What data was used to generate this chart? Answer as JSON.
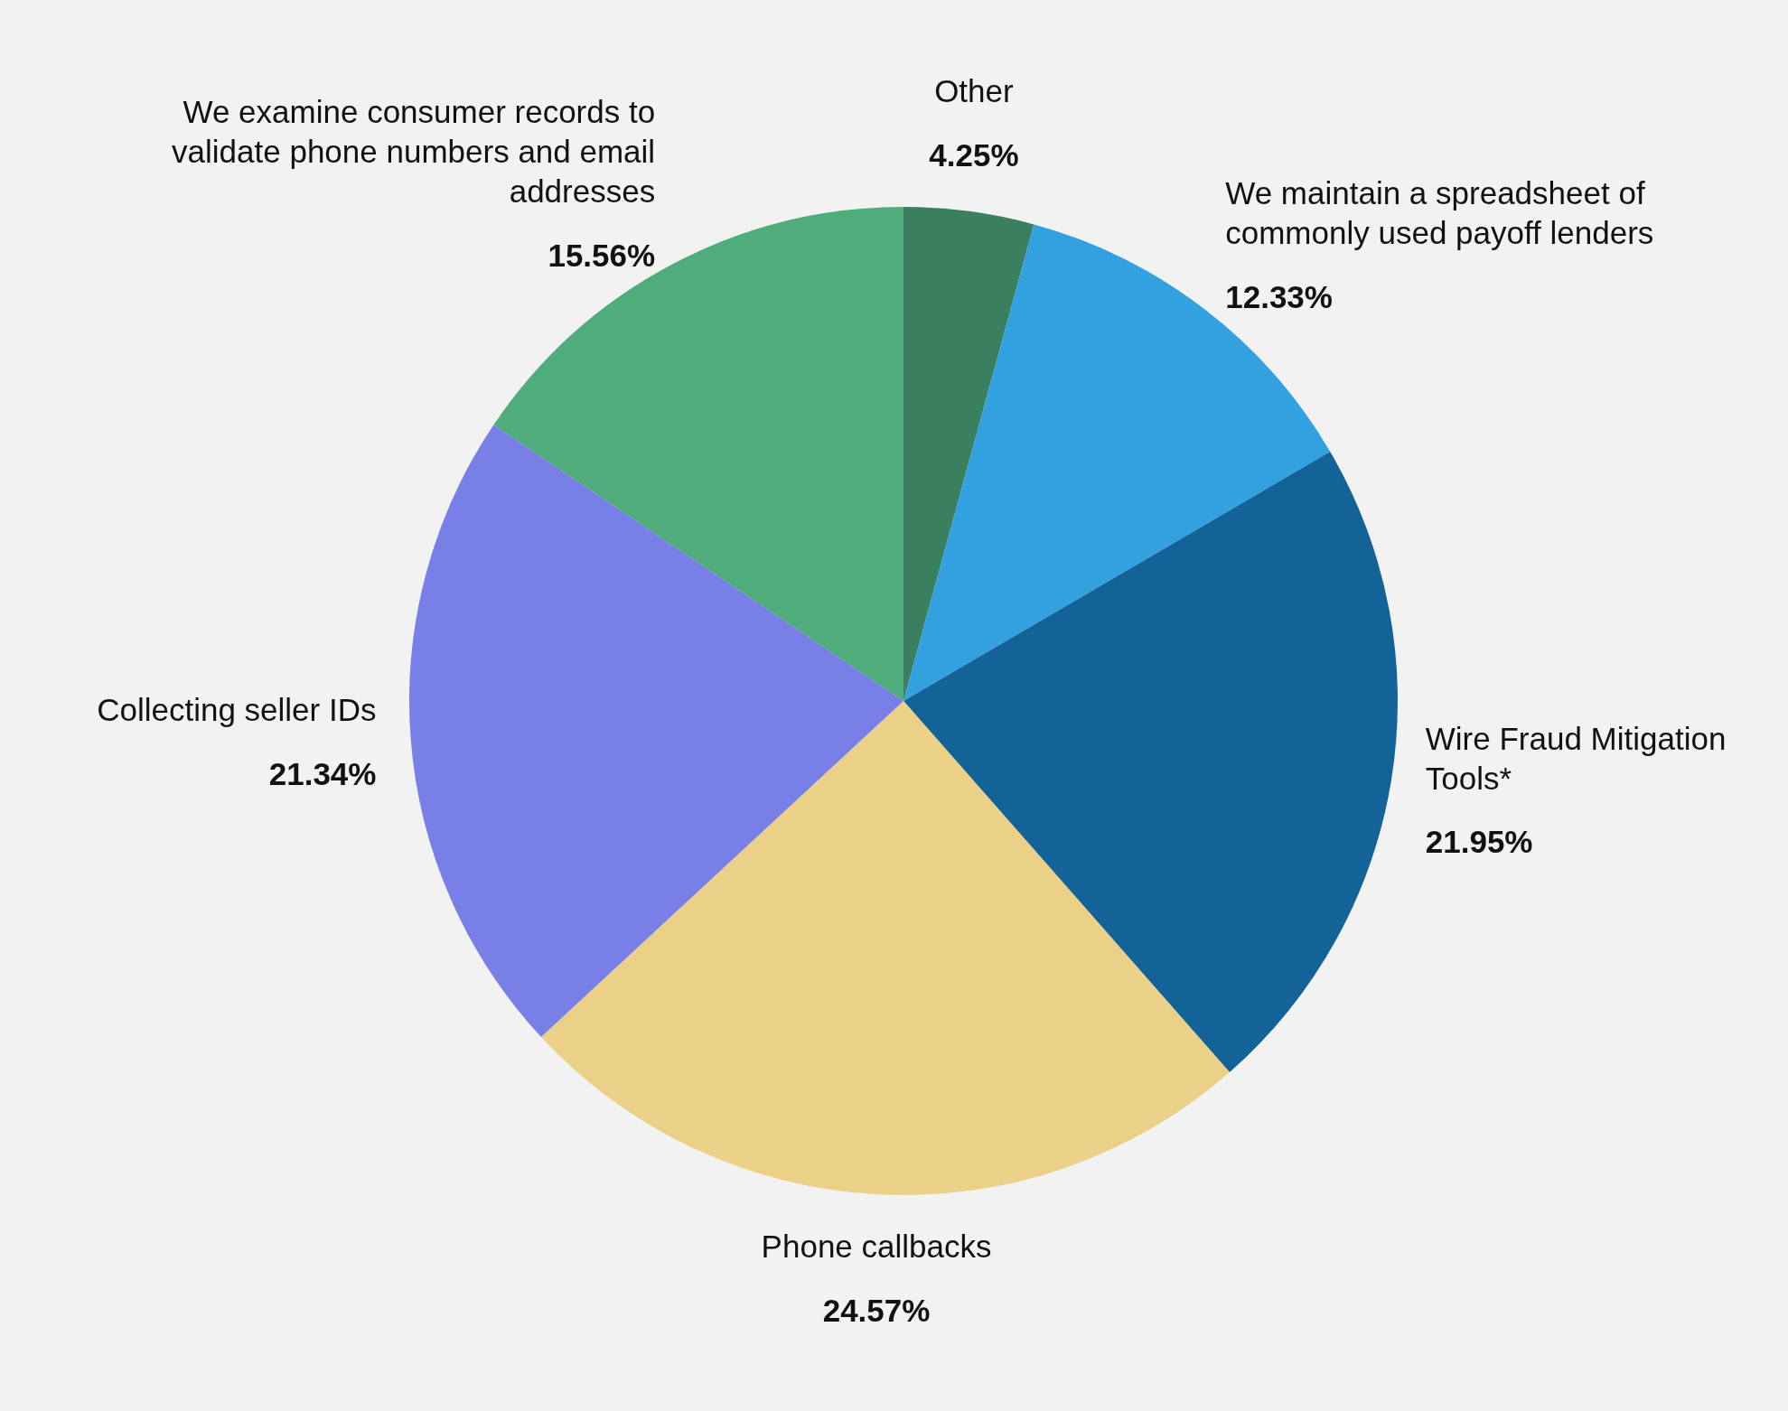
{
  "chart_data": {
    "type": "pie",
    "categories": [
      "Other",
      "We maintain a spreadsheet of commonly used payoff lenders",
      "Wire Fraud Mitigation Tools*",
      "Phone callbacks",
      "Collecting seller IDs",
      "We examine consumer records to validate phone numbers and email addresses"
    ],
    "values": [
      4.25,
      12.33,
      21.95,
      24.57,
      21.34,
      15.56
    ],
    "colors": [
      "#3a8060",
      "#33a0e0",
      "#136399",
      "#ebd087",
      "#7880e8",
      "#4fad7b"
    ],
    "value_labels": [
      "4.25%",
      "12.33%",
      "21.95%",
      "24.57%",
      "21.34%",
      "15.56%"
    ]
  }
}
